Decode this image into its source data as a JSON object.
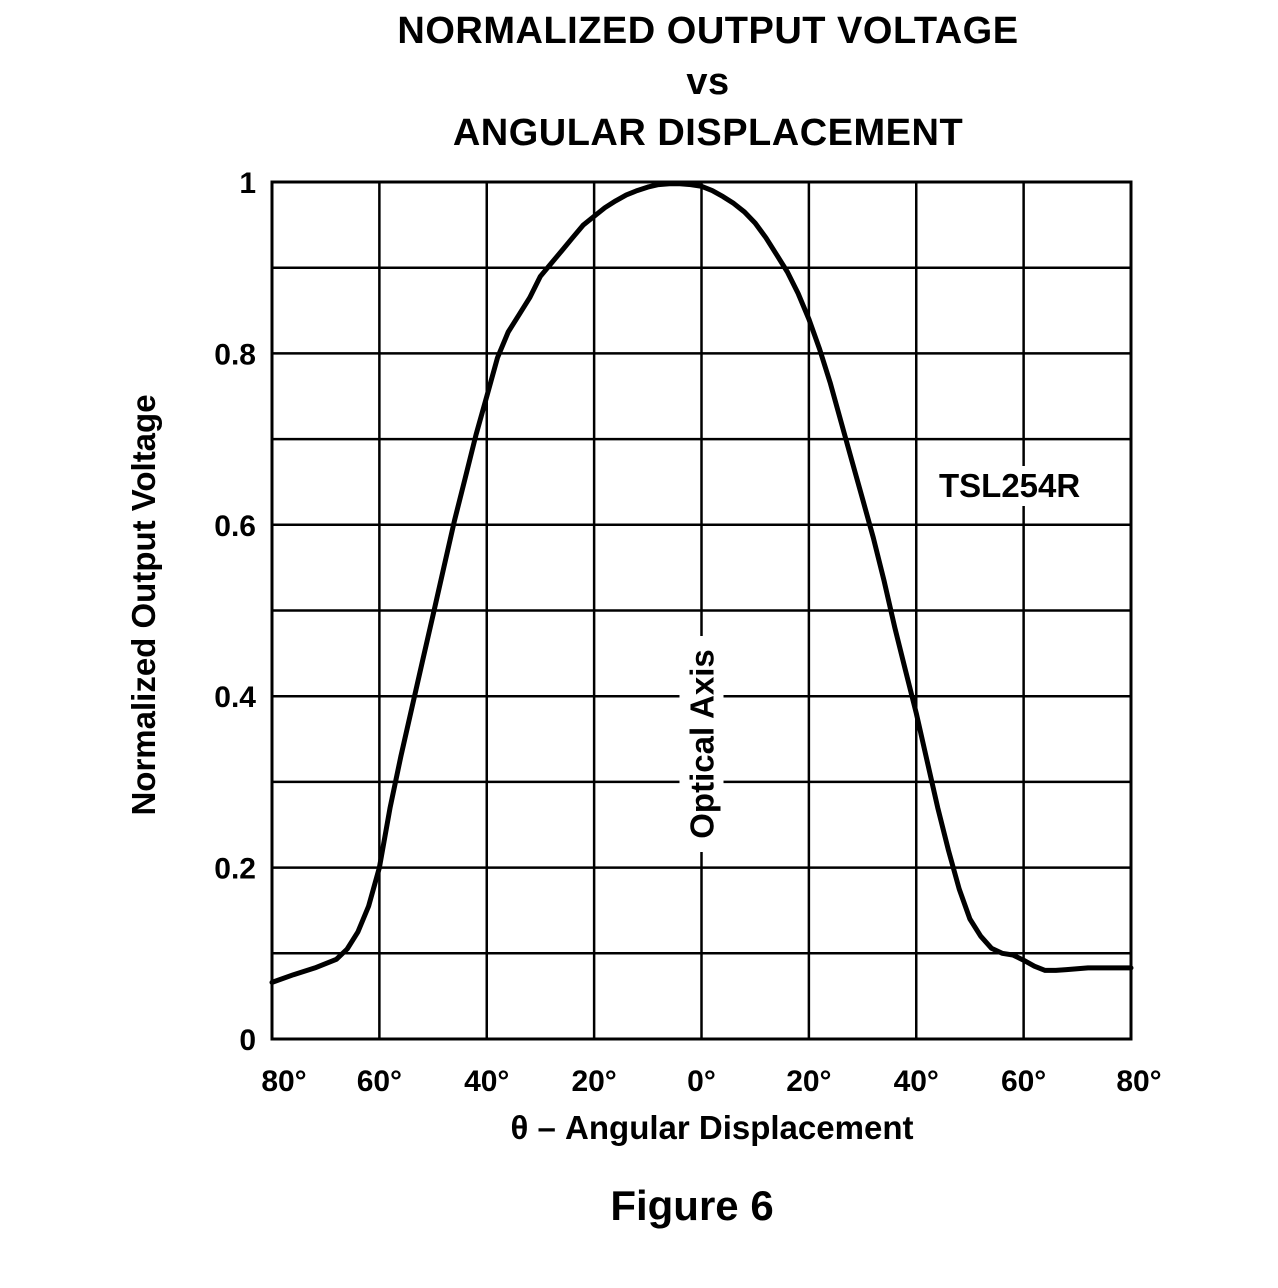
{
  "chart_data": {
    "type": "line",
    "title": [
      "NORMALIZED OUTPUT VOLTAGE",
      "vs",
      "ANGULAR DISPLACEMENT"
    ],
    "xlabel": "θ – Angular Displacement",
    "ylabel": "Normalized Output Voltage",
    "caption": "Figure 6",
    "xlim": [
      -80,
      80
    ],
    "ylim": [
      0,
      1
    ],
    "grid": true,
    "x_ticks": [
      -80,
      -60,
      -40,
      -20,
      0,
      20,
      40,
      60,
      80
    ],
    "x_tick_labels": [
      "80°",
      "60°",
      "40°",
      "20°",
      "0°",
      "20°",
      "40°",
      "60°",
      "80°"
    ],
    "y_ticks": [
      0,
      0.2,
      0.4,
      0.6,
      0.8,
      1
    ],
    "y_tick_labels": [
      "0",
      "0.2",
      "0.4",
      "0.6",
      "0.8",
      "1"
    ],
    "annotations": {
      "optical_axis": "Optical Axis",
      "series_label": "TSL254R"
    },
    "series": [
      {
        "name": "TSL254R",
        "x": [
          -80,
          -76,
          -72,
          -68,
          -66,
          -64,
          -62,
          -60,
          -58,
          -56,
          -54,
          -52,
          -50,
          -48,
          -46,
          -44,
          -42,
          -40,
          -38,
          -36,
          -34,
          -32,
          -30,
          -28,
          -26,
          -24,
          -22,
          -20,
          -18,
          -16,
          -14,
          -12,
          -10,
          -8,
          -6,
          -4,
          -2,
          0,
          2,
          4,
          6,
          8,
          10,
          12,
          14,
          16,
          18,
          20,
          22,
          24,
          26,
          28,
          30,
          32,
          34,
          36,
          38,
          40,
          42,
          44,
          46,
          48,
          50,
          52,
          54,
          56,
          58,
          60,
          62,
          64,
          66,
          68,
          70,
          72,
          74,
          76,
          78,
          80
        ],
        "y": [
          0.066,
          0.075,
          0.083,
          0.093,
          0.105,
          0.125,
          0.155,
          0.2,
          0.27,
          0.33,
          0.385,
          0.44,
          0.495,
          0.55,
          0.605,
          0.655,
          0.705,
          0.75,
          0.795,
          0.825,
          0.845,
          0.865,
          0.89,
          0.905,
          0.92,
          0.935,
          0.95,
          0.96,
          0.97,
          0.978,
          0.985,
          0.99,
          0.994,
          0.997,
          0.998,
          0.998,
          0.997,
          0.995,
          0.99,
          0.983,
          0.975,
          0.965,
          0.952,
          0.935,
          0.915,
          0.895,
          0.87,
          0.84,
          0.805,
          0.765,
          0.72,
          0.675,
          0.63,
          0.585,
          0.535,
          0.48,
          0.43,
          0.38,
          0.325,
          0.27,
          0.22,
          0.175,
          0.14,
          0.12,
          0.106,
          0.1,
          0.098,
          0.092,
          0.085,
          0.08,
          0.08,
          0.081,
          0.082,
          0.083,
          0.083,
          0.083,
          0.083,
          0.083
        ]
      }
    ]
  }
}
